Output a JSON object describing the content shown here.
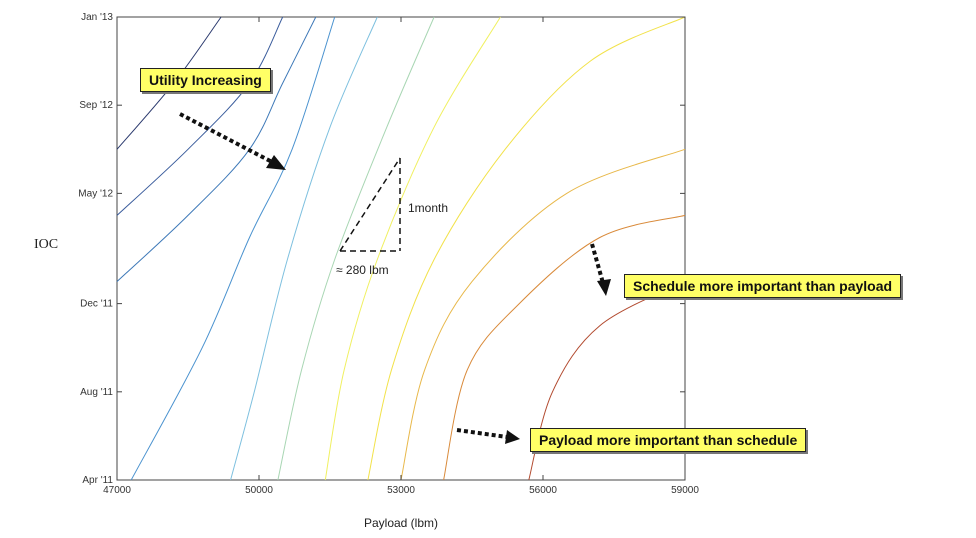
{
  "chart_data": {
    "type": "line",
    "subtype": "contour",
    "xlabel": "Payload (lbm)",
    "ylabel": "IOC",
    "xlim": [
      47000,
      59000
    ],
    "x_ticks": [
      47000,
      50000,
      53000,
      56000,
      59000
    ],
    "x_tick_labels": [
      "47000",
      "50000",
      "53000",
      "56000",
      "59000"
    ],
    "ylim": [
      "2011-04",
      "2013-01"
    ],
    "y_ticks": [
      "2011-04",
      "2011-08",
      "2011-12",
      "2012-05",
      "2012-09",
      "2013-01"
    ],
    "y_tick_labels": [
      "Apr '11",
      "Aug '11",
      "Dec '11",
      "May '12",
      "Sep '12",
      "Jan '13"
    ],
    "grid": false,
    "legend": "none",
    "contours": [
      {
        "color": "#2b3a6e",
        "points": [
          [
            47000,
            "2012-07"
          ],
          [
            48200,
            "2012-10"
          ],
          [
            49200,
            "2013-01"
          ]
        ]
      },
      {
        "color": "#3a5c9c",
        "points": [
          [
            47000,
            "2012-04"
          ],
          [
            48500,
            "2012-07"
          ],
          [
            49800,
            "2012-10"
          ],
          [
            50500,
            "2013-01"
          ]
        ]
      },
      {
        "color": "#3e79b8",
        "points": [
          [
            47000,
            "2012-01"
          ],
          [
            48500,
            "2012-04"
          ],
          [
            49800,
            "2012-07"
          ],
          [
            50500,
            "2012-10"
          ],
          [
            51200,
            "2013-01"
          ]
        ]
      },
      {
        "color": "#4a92cf",
        "points": [
          [
            47300,
            "2011-04"
          ],
          [
            48800,
            "2011-10"
          ],
          [
            49800,
            "2012-03"
          ],
          [
            50700,
            "2012-07"
          ],
          [
            51600,
            "2013-01"
          ]
        ]
      },
      {
        "color": "#7ec0df",
        "points": [
          [
            49400,
            "2011-04"
          ],
          [
            49900,
            "2011-08"
          ],
          [
            50600,
            "2012-02"
          ],
          [
            51500,
            "2012-08"
          ],
          [
            52500,
            "2013-01"
          ]
        ]
      },
      {
        "color": "#a8d6b3",
        "points": [
          [
            50400,
            "2011-04"
          ],
          [
            50900,
            "2011-09"
          ],
          [
            51600,
            "2012-02"
          ],
          [
            52700,
            "2012-08"
          ],
          [
            53700,
            "2013-01"
          ]
        ]
      },
      {
        "color": "#f0f060",
        "points": [
          [
            51400,
            "2011-04"
          ],
          [
            51800,
            "2011-09"
          ],
          [
            52500,
            "2012-02"
          ],
          [
            53700,
            "2012-08"
          ],
          [
            55100,
            "2013-01"
          ]
        ]
      },
      {
        "color": "#f2e24a",
        "points": [
          [
            52300,
            "2011-04"
          ],
          [
            52800,
            "2011-09"
          ],
          [
            53700,
            "2012-02"
          ],
          [
            55200,
            "2012-07"
          ],
          [
            57000,
            "2012-11"
          ],
          [
            59000,
            "2013-01"
          ]
        ]
      },
      {
        "color": "#e8b84a",
        "points": [
          [
            53000,
            "2011-04"
          ],
          [
            53500,
            "2011-09"
          ],
          [
            54500,
            "2012-01"
          ],
          [
            56500,
            "2012-05"
          ],
          [
            59000,
            "2012-07"
          ]
        ]
      },
      {
        "color": "#d98a3a",
        "points": [
          [
            53900,
            "2011-04"
          ],
          [
            54400,
            "2011-09"
          ],
          [
            55500,
            "2011-12"
          ],
          [
            57200,
            "2012-03"
          ],
          [
            59000,
            "2012-04"
          ]
        ]
      },
      {
        "color": "#b24a2f",
        "points": [
          [
            55700,
            "2011-04"
          ],
          [
            56200,
            "2011-08"
          ],
          [
            57200,
            "2011-11"
          ],
          [
            59000,
            "2012-01"
          ]
        ]
      }
    ],
    "annotations": [
      {
        "text": "Utility Increasing",
        "style": "callout"
      },
      {
        "text": "Schedule more important than payload",
        "style": "callout"
      },
      {
        "text": "Payload more important than schedule",
        "style": "callout"
      },
      {
        "text": "1month",
        "style": "plain"
      },
      {
        "text": "≈ 280 lbm",
        "style": "plain"
      }
    ]
  }
}
